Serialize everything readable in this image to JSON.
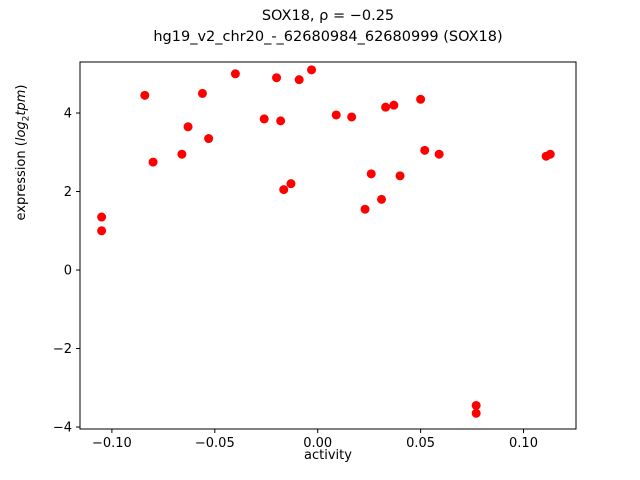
{
  "chart_data": {
    "type": "scatter",
    "title_line1": "SOX18, ρ = −0.25",
    "title_line2": "hg19_v2_chr20_-_62680984_62680999 (SOX18)",
    "xlabel": "activity",
    "ylabel": {
      "prefix": "expression (",
      "log_word": "log",
      "log_sub": "2",
      "unit_word": "tpm",
      "suffix": ")"
    },
    "marker_color": "#ff0000",
    "axis_color": "#000000",
    "xlim": [
      -0.1155,
      0.1255
    ],
    "ylim": [
      -4.05,
      5.3
    ],
    "xticks": [
      -0.1,
      -0.05,
      0.0,
      0.05,
      0.1
    ],
    "yticks": [
      -4,
      -2,
      0,
      2,
      4
    ],
    "xtick_labels": [
      "−0.10",
      "−0.05",
      "0.00",
      "0.05",
      "0.10"
    ],
    "ytick_labels": [
      "−4",
      "−2",
      "0",
      "2",
      "4"
    ],
    "points": [
      [
        -0.105,
        1.35
      ],
      [
        -0.105,
        1.0
      ],
      [
        -0.084,
        4.45
      ],
      [
        -0.08,
        2.75
      ],
      [
        -0.066,
        2.95
      ],
      [
        -0.063,
        3.65
      ],
      [
        -0.056,
        4.5
      ],
      [
        -0.053,
        3.35
      ],
      [
        -0.04,
        5.0
      ],
      [
        -0.026,
        3.85
      ],
      [
        -0.02,
        4.9
      ],
      [
        -0.018,
        3.8
      ],
      [
        -0.0165,
        2.05
      ],
      [
        -0.013,
        2.2
      ],
      [
        -0.009,
        4.85
      ],
      [
        -0.003,
        5.1
      ],
      [
        0.009,
        3.95
      ],
      [
        0.0165,
        3.9
      ],
      [
        0.023,
        1.55
      ],
      [
        0.026,
        2.45
      ],
      [
        0.031,
        1.8
      ],
      [
        0.033,
        4.15
      ],
      [
        0.037,
        4.2
      ],
      [
        0.04,
        2.4
      ],
      [
        0.05,
        4.35
      ],
      [
        0.052,
        3.05
      ],
      [
        0.059,
        2.95
      ],
      [
        0.077,
        -3.45
      ],
      [
        0.077,
        -3.65
      ],
      [
        0.111,
        2.9
      ],
      [
        0.113,
        2.95
      ]
    ]
  }
}
